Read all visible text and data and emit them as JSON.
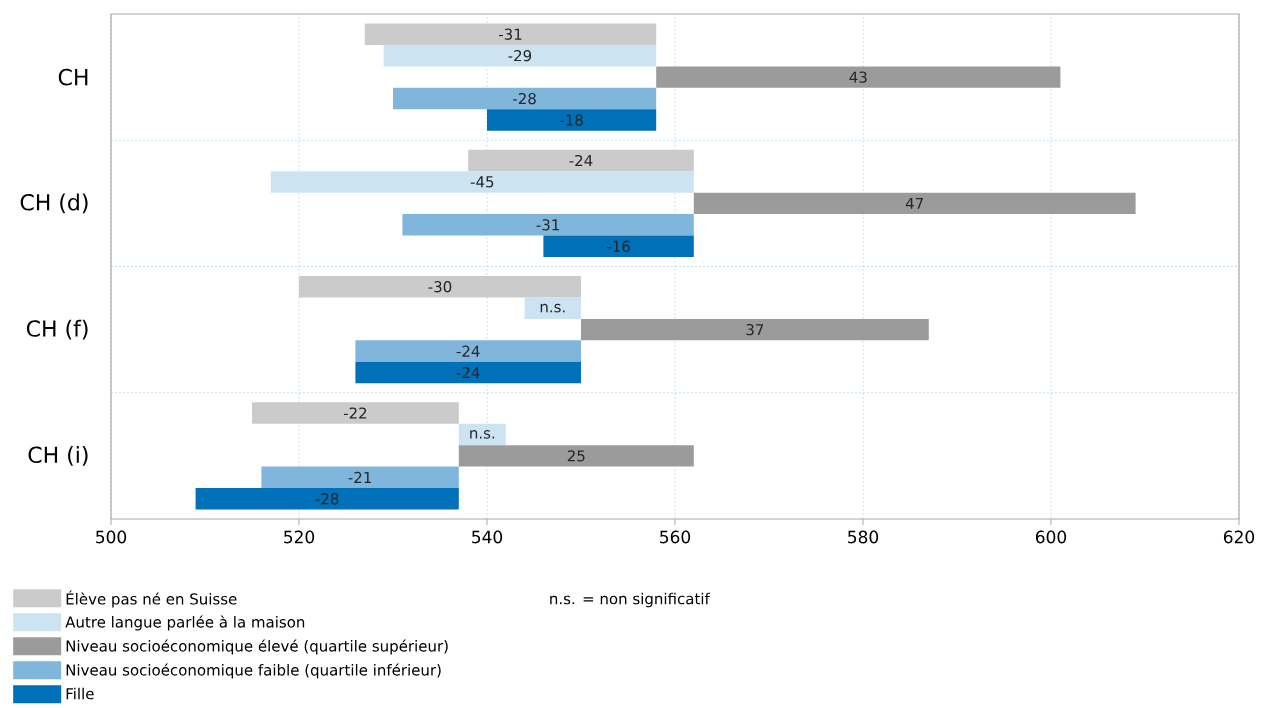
{
  "chart_data": {
    "type": "bar",
    "orientation": "horizontal",
    "categories": [
      "CH",
      "CH (d)",
      "CH (f)",
      "CH (i)"
    ],
    "series": [
      {
        "name": "Élève pas né en Suisse",
        "color": "#cbcbcb",
        "base": [
          558,
          562,
          550,
          537
        ],
        "values": [
          -31,
          -24,
          -30,
          -22
        ],
        "value_labels": [
          "-31",
          "-24",
          "-30",
          "-22"
        ]
      },
      {
        "name": "Autre langue parlée à la maison",
        "color": "#cce3f1",
        "base": [
          558,
          562,
          550,
          537
        ],
        "values": [
          -29,
          -45,
          -6,
          5
        ],
        "value_labels": [
          "-29",
          "-45",
          "n.s.",
          "n.s."
        ]
      },
      {
        "name": "Niveau socioéconomique élevé (quartile supérieur)",
        "color": "#9b9b9b",
        "base": [
          558,
          562,
          550,
          537
        ],
        "values": [
          43,
          47,
          37,
          25
        ],
        "value_labels": [
          "43",
          "47",
          "37",
          "25"
        ]
      },
      {
        "name": "Niveau socioéconomique faible (quartile inférieur)",
        "color": "#80b6db",
        "base": [
          558,
          562,
          550,
          537
        ],
        "values": [
          -28,
          -31,
          -24,
          -21
        ],
        "value_labels": [
          "-28",
          "-31",
          "-24",
          "-21"
        ]
      },
      {
        "name": "Fille",
        "color": "#0070b8",
        "base": [
          558,
          562,
          550,
          537
        ],
        "values": [
          -18,
          -16,
          -24,
          -28
        ],
        "value_labels": [
          "-18",
          "-16",
          "-24",
          "-28"
        ]
      }
    ],
    "xlim": [
      500,
      620
    ],
    "xticks": [
      500,
      520,
      540,
      560,
      580,
      600,
      620
    ],
    "grid": true,
    "legend": "bottom",
    "annotations": [
      "n.s. = non significatif"
    ]
  }
}
